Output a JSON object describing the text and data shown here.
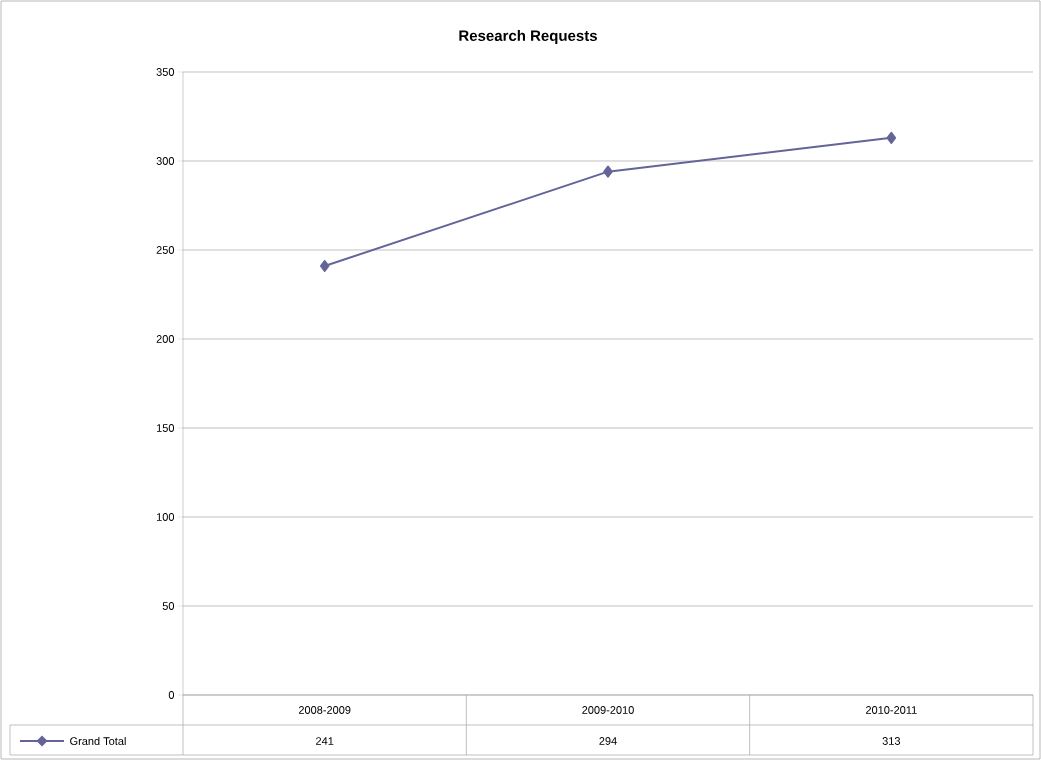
{
  "chart_data": {
    "type": "line",
    "title": "Research Requests",
    "categories": [
      "2008-2009",
      "2009-2010",
      "2010-2011"
    ],
    "series": [
      {
        "name": "Grand Total",
        "color": "#646499",
        "values": [
          241,
          294,
          313
        ]
      }
    ],
    "ylim": [
      0,
      350
    ],
    "yticks": [
      0,
      50,
      100,
      150,
      200,
      250,
      300,
      350
    ],
    "grid": "y",
    "legend": "bottom left",
    "marker": "diamond",
    "line_style": "solid",
    "data_labels": true
  }
}
